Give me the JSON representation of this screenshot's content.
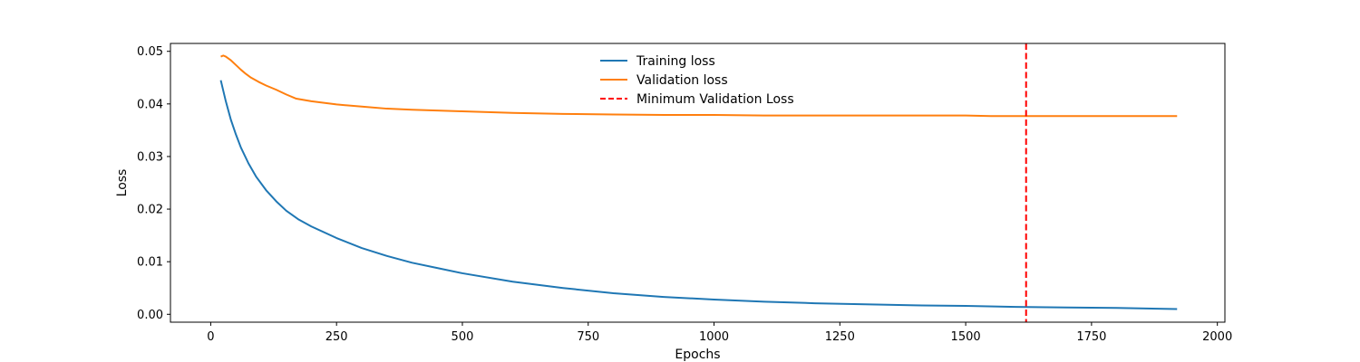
{
  "chart_data": {
    "type": "line",
    "title": "",
    "xlabel": "Epochs",
    "ylabel": "Loss",
    "xlim": [
      -80,
      2015
    ],
    "ylim": [
      -0.0015,
      0.0515
    ],
    "xticks": [
      0,
      250,
      500,
      750,
      1000,
      1250,
      1500,
      1750,
      2000
    ],
    "xtick_labels": [
      "0",
      "250",
      "500",
      "750",
      "1000",
      "1250",
      "1500",
      "1750",
      "2000"
    ],
    "yticks": [
      0.0,
      0.01,
      0.02,
      0.03,
      0.04,
      0.05
    ],
    "ytick_labels": [
      "0.00",
      "0.01",
      "0.02",
      "0.03",
      "0.04",
      "0.05"
    ],
    "grid": false,
    "legend_placement": "top-center",
    "series": [
      {
        "name": "Training loss",
        "color": "#1f77b4",
        "style": "solid",
        "x": [
          20,
          30,
          40,
          50,
          60,
          75,
          90,
          110,
          130,
          150,
          175,
          200,
          250,
          300,
          350,
          400,
          450,
          500,
          600,
          700,
          800,
          900,
          1000,
          1100,
          1200,
          1300,
          1400,
          1500,
          1600,
          1700,
          1800,
          1920
        ],
        "y": [
          0.0445,
          0.0405,
          0.037,
          0.0342,
          0.0317,
          0.0287,
          0.0262,
          0.0236,
          0.0215,
          0.0197,
          0.018,
          0.0167,
          0.0145,
          0.0126,
          0.0111,
          0.0098,
          0.0088,
          0.0078,
          0.0062,
          0.005,
          0.004,
          0.0033,
          0.0028,
          0.0024,
          0.0021,
          0.0019,
          0.0017,
          0.0016,
          0.0014,
          0.0013,
          0.0012,
          0.001
        ]
      },
      {
        "name": "Validation loss",
        "color": "#ff7f0e",
        "style": "solid",
        "x": [
          20,
          25,
          30,
          40,
          50,
          60,
          70,
          80,
          95,
          110,
          130,
          150,
          170,
          200,
          250,
          300,
          350,
          400,
          500,
          600,
          700,
          800,
          900,
          1000,
          1100,
          1200,
          1300,
          1400,
          1500,
          1550,
          1600,
          1620,
          1700,
          1800,
          1920
        ],
        "y": [
          0.049,
          0.0492,
          0.049,
          0.0483,
          0.0474,
          0.0465,
          0.0457,
          0.045,
          0.0442,
          0.0435,
          0.0427,
          0.0418,
          0.041,
          0.0405,
          0.0399,
          0.0395,
          0.0391,
          0.0389,
          0.0386,
          0.0383,
          0.0381,
          0.038,
          0.0379,
          0.0379,
          0.0378,
          0.0378,
          0.0378,
          0.0378,
          0.0378,
          0.0377,
          0.0377,
          0.0377,
          0.0377,
          0.0377,
          0.0377
        ]
      }
    ],
    "vlines": [
      {
        "name": "Minimum Validation Loss",
        "x": 1620,
        "color": "#ff0000",
        "style": "dashed"
      }
    ]
  }
}
